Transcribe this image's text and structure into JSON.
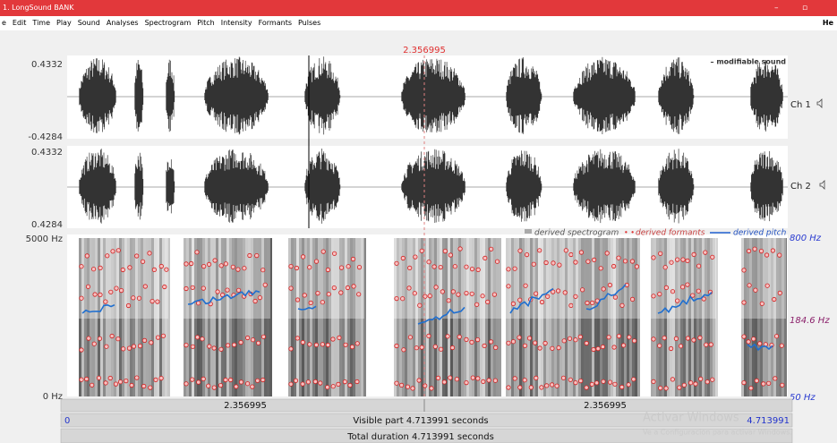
{
  "title": "1. LongSound BANK",
  "menu": [
    "e",
    "Edit",
    "Time",
    "Play",
    "Sound",
    "Analyses",
    "Spectrogram",
    "Pitch",
    "Intensity",
    "Formants",
    "Pulses"
  ],
  "menu_right": "He",
  "cursor_time": "2.356995",
  "sound_label": "– modifiable sound",
  "channels": [
    {
      "top": "0.4332",
      "bottom": "-0.4284",
      "label": "Ch 1"
    },
    {
      "top": "0.4332",
      "bottom": "0.4284",
      "label": "Ch 2"
    }
  ],
  "spectrogram": {
    "top": "5000 Hz",
    "bottom": "0 Hz",
    "legend": [
      "derived spectrogram",
      "derived formants",
      "derived pitch"
    ],
    "pitch_top": "800 Hz",
    "pitch_mid": "184.6 Hz",
    "pitch_bottom": "50 Hz"
  },
  "time_bar": {
    "left_part": "2.356995",
    "right_part": "2.356995"
  },
  "visible": {
    "start": "0",
    "label": "Visible part 4.713991 seconds",
    "end": "4.713991"
  },
  "total": "Total duration 4.713991 seconds",
  "watermark": {
    "title": "Activar Windows",
    "text": "Ve a Configuración para activar Windows."
  }
}
